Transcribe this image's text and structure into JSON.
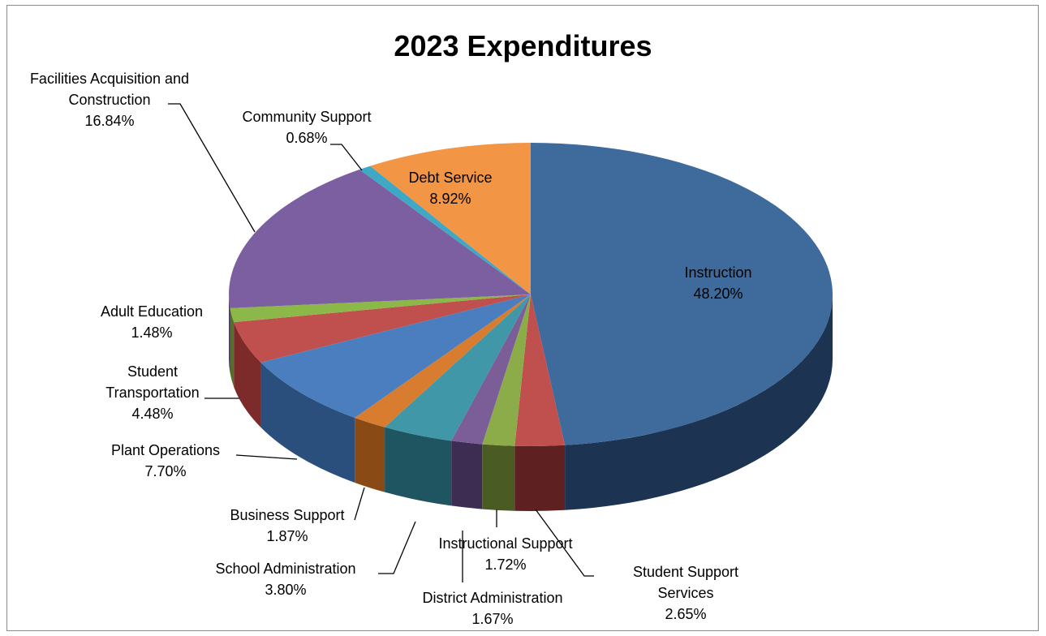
{
  "chart_data": {
    "type": "pie",
    "title": "2023 Expenditures",
    "slices": [
      {
        "name": "Instruction",
        "percent_label": "48.20%",
        "value": 48.2,
        "color": "#3e6a9c",
        "side": "#1c3352"
      },
      {
        "name": "Student Support Services",
        "name_lines": [
          "Student Support",
          "Services"
        ],
        "percent_label": "2.65%",
        "value": 2.65,
        "color": "#c0504d",
        "side": "#5e2020"
      },
      {
        "name": "Instructional Support",
        "percent_label": "1.72%",
        "value": 1.72,
        "color": "#8cac4a",
        "side": "#4a5c24"
      },
      {
        "name": "District Administration",
        "percent_label": "1.67%",
        "value": 1.67,
        "color": "#7b5e98",
        "side": "#3e2d52"
      },
      {
        "name": "School Administration",
        "percent_label": "3.80%",
        "value": 3.8,
        "color": "#3f97a8",
        "side": "#1f5560"
      },
      {
        "name": "Business Support",
        "percent_label": "1.87%",
        "value": 1.87,
        "color": "#d87c30",
        "side": "#8a4a16"
      },
      {
        "name": "Plant Operations",
        "percent_label": "7.70%",
        "value": 7.7,
        "color": "#4a7ebf",
        "side": "#2b4f7d"
      },
      {
        "name": "Student Transportation",
        "name_lines": [
          "Student",
          "Transportation"
        ],
        "percent_label": "4.48%",
        "value": 4.48,
        "color": "#c0504d",
        "side": "#7d2b2a"
      },
      {
        "name": "Adult Education",
        "percent_label": "1.48%",
        "value": 1.48,
        "color": "#8cb84a",
        "side": "#52702a"
      },
      {
        "name": "Facilities Acquisition and Construction",
        "name_lines": [
          "Facilities Acquisition and",
          "Construction"
        ],
        "percent_label": "16.84%",
        "value": 16.84,
        "color": "#7b5fa0",
        "side": "#4b3864"
      },
      {
        "name": "Community Support",
        "percent_label": "0.68%",
        "value": 0.68,
        "color": "#3fa8c4",
        "side": "#1f6072"
      },
      {
        "name": "Debt Service",
        "percent_label": "8.92%",
        "value": 8.92,
        "color": "#f29645",
        "side": "#a85c20"
      }
    ]
  }
}
